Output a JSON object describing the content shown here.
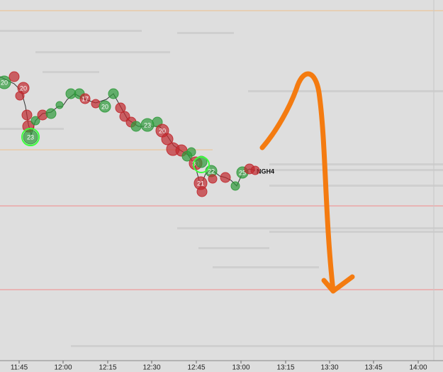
{
  "screen": {
    "time_axis": [
      "11:45",
      "12:00",
      "12:15",
      "12:30",
      "12:45",
      "13:00",
      "13:15",
      "13:30",
      "13:45",
      "14:00"
    ],
    "symbol": "NGH4",
    "bubble_labels": [
      "20",
      "20",
      "23",
      "17",
      "20",
      "23",
      "20",
      "30",
      "22",
      "21",
      "25"
    ]
  }
}
